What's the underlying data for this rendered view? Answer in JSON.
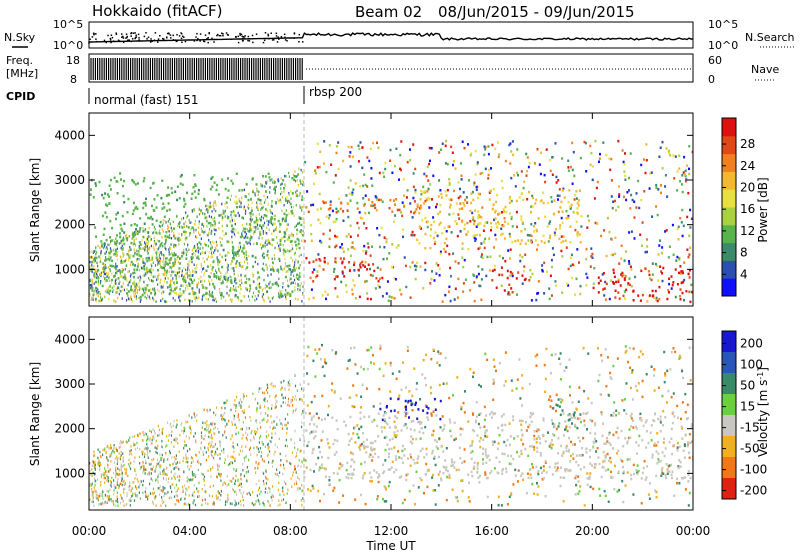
{
  "header": {
    "station": "Hokkaido (fitACF)",
    "beam": "Beam 02",
    "date_range": "08/Jun/2015 - 09/Jun/2015"
  },
  "noise_panel": {
    "left_label": "N.Sky",
    "right_label": "N.Search",
    "left_ticks": [
      "10^5",
      "10^0"
    ],
    "right_ticks": [
      "10^5",
      "10^0"
    ]
  },
  "freq_panel": {
    "left_label_top": "Freq.",
    "left_label_bottom": "[MHz]",
    "right_label": "Nave",
    "left_ticks": [
      "18",
      "8"
    ],
    "right_ticks": [
      "60",
      "0"
    ]
  },
  "cpid_panel": {
    "label": "CPID",
    "modes": [
      {
        "name": "normal (fast) 151",
        "start_hour": 0,
        "end_hour": 8.5
      },
      {
        "name": "rbsp 200",
        "start_hour": 8.5,
        "end_hour": 24
      }
    ]
  },
  "x_axis": {
    "label": "Time UT",
    "ticks": [
      "00:00",
      "04:00",
      "08:00",
      "12:00",
      "16:00",
      "20:00",
      "00:00"
    ]
  },
  "chart_data": [
    {
      "type": "heatmap",
      "title": "Power",
      "ylabel": "Slant Range [km]",
      "xlabel": "Time UT",
      "xlim_hours": [
        0,
        24
      ],
      "ylim": [
        180,
        4500
      ],
      "y_ticks": [
        "1000",
        "2000",
        "3000",
        "4000"
      ],
      "colorbar_label": "Power [dB]",
      "colorbar_ticks": [
        "4",
        "8",
        "12",
        "16",
        "20",
        "24",
        "28"
      ],
      "colorbar_colors": [
        "#1010ff",
        "#2b4fb0",
        "#3b8b6a",
        "#58b34a",
        "#a8d040",
        "#e8e040",
        "#f4b830",
        "#f08020",
        "#e04818",
        "#e01010"
      ],
      "features": [
        {
          "t_start": 0.0,
          "t_end": 8.5,
          "r_start": 400,
          "r_end": 3200,
          "value": 10
        },
        {
          "t_start": 8.5,
          "t_end": 12.0,
          "r_start": 800,
          "r_end": 1300,
          "value": 26
        },
        {
          "t_start": 8.5,
          "t_end": 15.0,
          "r_start": 2300,
          "r_end": 2600,
          "value": 22
        },
        {
          "t_start": 16.0,
          "t_end": 17.5,
          "r_start": 500,
          "r_end": 1100,
          "value": 26
        },
        {
          "t_start": 20.0,
          "t_end": 24.0,
          "r_start": 300,
          "r_end": 1100,
          "value": 28
        },
        {
          "t_start": 13.0,
          "t_end": 19.5,
          "r_start": 1600,
          "r_end": 2800,
          "value": 18
        }
      ]
    },
    {
      "type": "heatmap",
      "title": "Velocity",
      "ylabel": "Slant Range [km]",
      "xlabel": "Time UT",
      "xlim_hours": [
        0,
        24
      ],
      "ylim": [
        180,
        4500
      ],
      "y_ticks": [
        "1000",
        "2000",
        "3000",
        "4000"
      ],
      "colorbar_label": "Velocity [m s-1]",
      "colorbar_ticks": [
        "200",
        "100",
        "50",
        "15",
        "-15",
        "-50",
        "-100",
        "-200"
      ],
      "colorbar_colors": [
        "#1818d0",
        "#2a56b8",
        "#3a8a6a",
        "#6ad040",
        "#c8c8c0",
        "#f0b020",
        "#f07818",
        "#e02010"
      ],
      "features": [
        {
          "t_start": 11.5,
          "t_end": 14.0,
          "r_start": 2200,
          "r_end": 2700,
          "value": 200
        },
        {
          "t_start": 18.3,
          "t_end": 19.4,
          "r_start": 1900,
          "r_end": 2600,
          "value": 50
        },
        {
          "t_start": 8.5,
          "t_end": 24.0,
          "r_start": 900,
          "r_end": 2400,
          "value": 0
        }
      ]
    }
  ]
}
